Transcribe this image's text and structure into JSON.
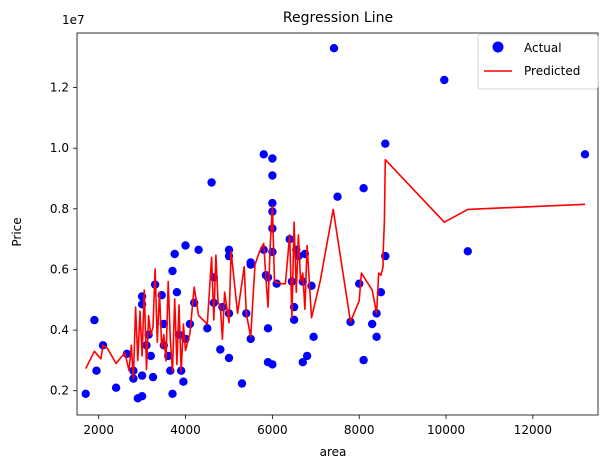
{
  "chart_data": {
    "type": "scatter",
    "title": "Regression Line",
    "xlabel": "area",
    "ylabel": "Price",
    "y_offset_label": "1e7",
    "xlim": [
      1500,
      13500
    ],
    "ylim": [
      1200000,
      13800000
    ],
    "xticks": [
      2000,
      4000,
      6000,
      8000,
      10000,
      12000
    ],
    "xtick_labels": [
      "2000",
      "4000",
      "6000",
      "8000",
      "10000",
      "12000"
    ],
    "yticks": [
      2000000,
      4000000,
      6000000,
      8000000,
      10000000,
      12000000
    ],
    "ytick_labels": [
      "0.2",
      "0.4",
      "0.6",
      "0.8",
      "1.0",
      "1.2"
    ],
    "grid": false,
    "legend": {
      "position": "top-right",
      "entries": [
        "Actual",
        "Predicted"
      ]
    },
    "series": [
      {
        "name": "Actual",
        "kind": "scatter",
        "color": "#0000ff",
        "points": [
          [
            1700,
            1900000
          ],
          [
            1900,
            4330000
          ],
          [
            1950,
            2660000
          ],
          [
            2100,
            3500000
          ],
          [
            2400,
            2100000
          ],
          [
            2650,
            3220000
          ],
          [
            2800,
            2660000
          ],
          [
            2800,
            2400000
          ],
          [
            2900,
            1750000
          ],
          [
            3000,
            1820000
          ],
          [
            3000,
            2500000
          ],
          [
            3000,
            4850000
          ],
          [
            3000,
            5110000
          ],
          [
            3100,
            3500000
          ],
          [
            3150,
            3850000
          ],
          [
            3200,
            3150000
          ],
          [
            3250,
            2450000
          ],
          [
            3300,
            5500000
          ],
          [
            3450,
            5150000
          ],
          [
            3500,
            4200000
          ],
          [
            3500,
            3500000
          ],
          [
            3600,
            3150000
          ],
          [
            3650,
            2660000
          ],
          [
            3700,
            1900000
          ],
          [
            3700,
            5950000
          ],
          [
            3750,
            6510000
          ],
          [
            3800,
            5250000
          ],
          [
            3850,
            3850000
          ],
          [
            3900,
            2660000
          ],
          [
            3950,
            2300000
          ],
          [
            4000,
            6790000
          ],
          [
            4000,
            3710000
          ],
          [
            4100,
            4200000
          ],
          [
            4200,
            4900000
          ],
          [
            4300,
            6650000
          ],
          [
            4500,
            4060000
          ],
          [
            4600,
            8870000
          ],
          [
            4650,
            4900000
          ],
          [
            4650,
            5740000
          ],
          [
            4800,
            3360000
          ],
          [
            4850,
            4760000
          ],
          [
            5000,
            3080000
          ],
          [
            5000,
            6650000
          ],
          [
            5000,
            6440000
          ],
          [
            5000,
            4550000
          ],
          [
            5300,
            2240000
          ],
          [
            5400,
            4550000
          ],
          [
            5500,
            3710000
          ],
          [
            5500,
            6160000
          ],
          [
            5500,
            6230000
          ],
          [
            5800,
            9800000
          ],
          [
            5800,
            6650000
          ],
          [
            5850,
            5810000
          ],
          [
            5900,
            2940000
          ],
          [
            5900,
            4060000
          ],
          [
            5900,
            5740000
          ],
          [
            6000,
            9660000
          ],
          [
            6000,
            9100000
          ],
          [
            6000,
            8190000
          ],
          [
            6000,
            7910000
          ],
          [
            6000,
            7350000
          ],
          [
            6000,
            6580000
          ],
          [
            6000,
            2870000
          ],
          [
            6100,
            5530000
          ],
          [
            6400,
            7000000
          ],
          [
            6450,
            5600000
          ],
          [
            6500,
            4760000
          ],
          [
            6500,
            4340000
          ],
          [
            6550,
            6650000
          ],
          [
            6600,
            6440000
          ],
          [
            6700,
            2940000
          ],
          [
            6700,
            5600000
          ],
          [
            6750,
            6510000
          ],
          [
            6800,
            3150000
          ],
          [
            6900,
            5460000
          ],
          [
            6950,
            3780000
          ],
          [
            7420,
            13300000
          ],
          [
            7500,
            8400000
          ],
          [
            7800,
            4270000
          ],
          [
            8000,
            5530000
          ],
          [
            8100,
            8680000
          ],
          [
            8100,
            3010000
          ],
          [
            8300,
            4200000
          ],
          [
            8400,
            4550000
          ],
          [
            8400,
            3780000
          ],
          [
            8500,
            5250000
          ],
          [
            8600,
            10150000
          ],
          [
            8600,
            6440000
          ],
          [
            9960,
            12250000
          ],
          [
            10500,
            6600000
          ],
          [
            13200,
            9800000
          ]
        ]
      },
      {
        "name": "Predicted",
        "kind": "line",
        "color": "#ff0000",
        "points": [
          [
            1700,
            2730000
          ],
          [
            1900,
            3300000
          ],
          [
            2050,
            3050000
          ],
          [
            2100,
            3500000
          ],
          [
            2200,
            3400000
          ],
          [
            2400,
            2900000
          ],
          [
            2600,
            3250000
          ],
          [
            2700,
            2660000
          ],
          [
            2750,
            3500000
          ],
          [
            2800,
            2400000
          ],
          [
            2850,
            4760000
          ],
          [
            2900,
            3000000
          ],
          [
            2950,
            4620000
          ],
          [
            3000,
            3150000
          ],
          [
            3050,
            5320000
          ],
          [
            3100,
            2700000
          ],
          [
            3150,
            4480000
          ],
          [
            3200,
            3850000
          ],
          [
            3250,
            4100000
          ],
          [
            3300,
            6020000
          ],
          [
            3350,
            3600000
          ],
          [
            3400,
            5250000
          ],
          [
            3450,
            3400000
          ],
          [
            3500,
            3850000
          ],
          [
            3550,
            2980000
          ],
          [
            3600,
            5600000
          ],
          [
            3650,
            3700000
          ],
          [
            3700,
            2630000
          ],
          [
            3750,
            5030000
          ],
          [
            3800,
            2870000
          ],
          [
            3850,
            4830000
          ],
          [
            3900,
            2630000
          ],
          [
            3950,
            4200000
          ],
          [
            4000,
            3330000
          ],
          [
            4100,
            3880000
          ],
          [
            4200,
            5420000
          ],
          [
            4300,
            4480000
          ],
          [
            4500,
            4200000
          ],
          [
            4600,
            6400000
          ],
          [
            4650,
            4340000
          ],
          [
            4700,
            6470000
          ],
          [
            4750,
            4900000
          ],
          [
            4800,
            4800000
          ],
          [
            4850,
            3700000
          ],
          [
            4900,
            5250000
          ],
          [
            5000,
            4240000
          ],
          [
            5050,
            6600000
          ],
          [
            5200,
            4550000
          ],
          [
            5350,
            6090000
          ],
          [
            5400,
            4550000
          ],
          [
            5500,
            3780000
          ],
          [
            5600,
            6160000
          ],
          [
            5700,
            6580000
          ],
          [
            5800,
            6860000
          ],
          [
            5850,
            5740000
          ],
          [
            5900,
            4760000
          ],
          [
            5950,
            6790000
          ],
          [
            6000,
            8090000
          ],
          [
            6050,
            5600000
          ],
          [
            6200,
            5530000
          ],
          [
            6300,
            5530000
          ],
          [
            6400,
            7140000
          ],
          [
            6450,
            4410000
          ],
          [
            6500,
            7560000
          ],
          [
            6550,
            5250000
          ],
          [
            6600,
            7140000
          ],
          [
            6650,
            5600000
          ],
          [
            6700,
            5880000
          ],
          [
            6750,
            4690000
          ],
          [
            6800,
            6790000
          ],
          [
            6900,
            4410000
          ],
          [
            7100,
            5600000
          ],
          [
            7400,
            7980000
          ],
          [
            7800,
            4270000
          ],
          [
            8000,
            4970000
          ],
          [
            8050,
            5880000
          ],
          [
            8300,
            5320000
          ],
          [
            8400,
            4550000
          ],
          [
            8450,
            5880000
          ],
          [
            8500,
            5810000
          ],
          [
            8550,
            6090000
          ],
          [
            8550,
            6500000
          ],
          [
            8580,
            7600000
          ],
          [
            8600,
            9620000
          ],
          [
            9960,
            7560000
          ],
          [
            10500,
            7980000
          ],
          [
            13200,
            8150000
          ]
        ]
      }
    ]
  }
}
